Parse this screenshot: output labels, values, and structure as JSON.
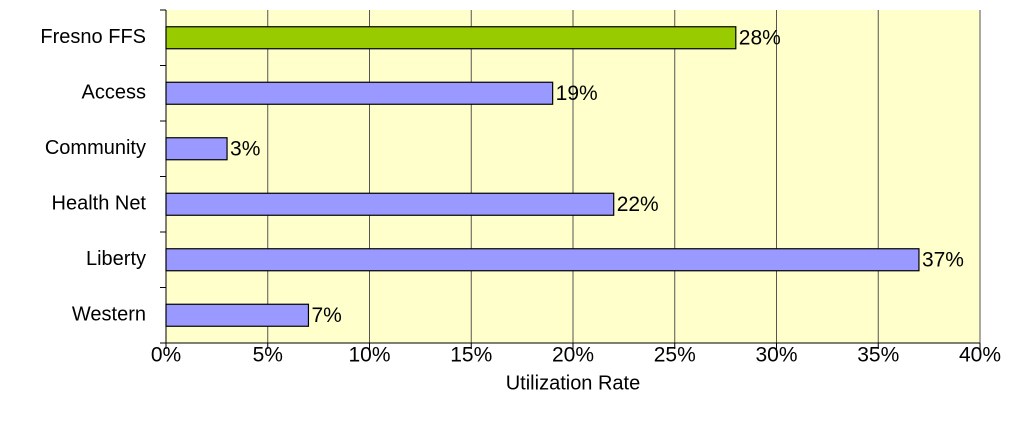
{
  "chart_data": {
    "type": "barh",
    "categories": [
      "Fresno FFS",
      "Access",
      "Community",
      "Health Net",
      "Liberty",
      "Western"
    ],
    "values": [
      28,
      19,
      3,
      22,
      37,
      7
    ],
    "value_labels": [
      "28%",
      "19%",
      "3%",
      "22%",
      "37%",
      "7%"
    ],
    "colors": [
      "#99CC00",
      "#9999FF",
      "#9999FF",
      "#9999FF",
      "#9999FF",
      "#9999FF"
    ],
    "xlabel": "Utilization Rate",
    "xlim": [
      0,
      40
    ],
    "xticks": [
      {
        "value": 0,
        "label": "0%"
      },
      {
        "value": 5,
        "label": "5%"
      },
      {
        "value": 10,
        "label": "10%"
      },
      {
        "value": 15,
        "label": "15%"
      },
      {
        "value": 20,
        "label": "20%"
      },
      {
        "value": 25,
        "label": "25%"
      },
      {
        "value": 30,
        "label": "30%"
      },
      {
        "value": 35,
        "label": "35%"
      },
      {
        "value": 40,
        "label": "40%"
      }
    ],
    "grid": true,
    "background": "#FFFFCC"
  }
}
